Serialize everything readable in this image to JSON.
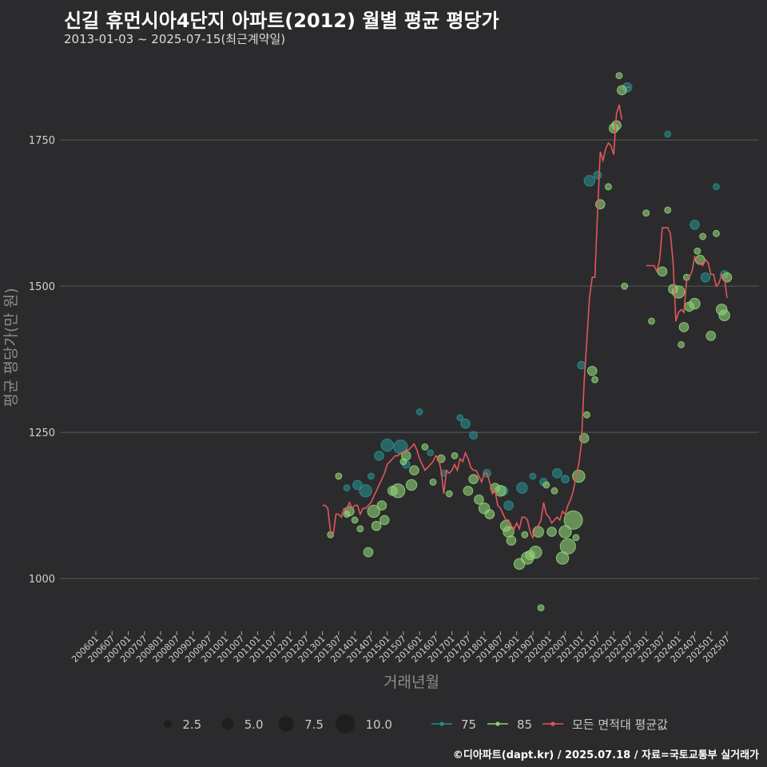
{
  "title": "신길 휴먼시아4단지 아파트(2012) 월별 평균 평당가",
  "subtitle": "2013-01-03 ~ 2025-07-15(최근계약일)",
  "caption": "©디아파트(dapt.kr) / 2025.07.18 / 자료=국토교통부 실거래가",
  "colors": {
    "background": "#2b2b2d",
    "grid": "#5a5a5a",
    "series_75": "#2a8c8c",
    "series_85": "#8fd175",
    "avg_line": "#e0575b"
  },
  "chart_data": {
    "type": "scatter",
    "xlabel": "거래년월",
    "ylabel": "평균 평당가(만 원)",
    "ylim": [
      910,
      1880
    ],
    "y_ticks": [
      1000,
      1250,
      1500,
      1750
    ],
    "x_ticks": [
      "200601",
      "200607",
      "200701",
      "200707",
      "200801",
      "200807",
      "200901",
      "200907",
      "201001",
      "201007",
      "201101",
      "201107",
      "201201",
      "201207",
      "201301",
      "201307",
      "201401",
      "201407",
      "201501",
      "201507",
      "201601",
      "201607",
      "201701",
      "201707",
      "201801",
      "201807",
      "201901",
      "201907",
      "202001",
      "202007",
      "202101",
      "202107",
      "202201",
      "202207",
      "202301",
      "202307",
      "202401",
      "202407",
      "202501",
      "202507"
    ],
    "x_range": [
      "2006-01",
      "2025-07"
    ],
    "grid": true,
    "legend_position": "bottom",
    "size_legend": [
      2.5,
      5.0,
      7.5,
      10.0
    ],
    "series": [
      {
        "name": "75",
        "points": [
          [
            "2013-10",
            1155,
            2
          ],
          [
            "2014-02",
            1160,
            4
          ],
          [
            "2014-05",
            1150,
            6
          ],
          [
            "2014-07",
            1175,
            2
          ],
          [
            "2014-10",
            1210,
            4
          ],
          [
            "2015-01",
            1228,
            6
          ],
          [
            "2015-06",
            1225,
            7
          ],
          [
            "2015-08",
            1195,
            3
          ],
          [
            "2016-01",
            1285,
            2
          ],
          [
            "2016-05",
            1215,
            2
          ],
          [
            "2016-10",
            1180,
            2
          ],
          [
            "2017-06",
            1265,
            4
          ],
          [
            "2017-04",
            1275,
            2
          ],
          [
            "2017-09",
            1245,
            3
          ],
          [
            "2018-02",
            1180,
            3
          ],
          [
            "2018-08",
            1150,
            4
          ],
          [
            "2018-10",
            1125,
            4
          ],
          [
            "2019-03",
            1155,
            5
          ],
          [
            "2019-07",
            1175,
            2
          ],
          [
            "2019-11",
            1165,
            3
          ],
          [
            "2020-04",
            1180,
            4
          ],
          [
            "2020-07",
            1170,
            3
          ],
          [
            "2021-01",
            1365,
            3
          ],
          [
            "2021-04",
            1680,
            5
          ],
          [
            "2021-07",
            1690,
            3
          ],
          [
            "2022-06",
            1840,
            4
          ],
          [
            "2023-09",
            1760,
            2
          ],
          [
            "2024-07",
            1605,
            4
          ],
          [
            "2024-11",
            1515,
            4
          ],
          [
            "2025-03",
            1670,
            2
          ],
          [
            "2025-06",
            1520,
            3
          ]
        ]
      },
      {
        "name": "85",
        "points": [
          [
            "2013-04",
            1075,
            2
          ],
          [
            "2013-07",
            1175,
            2
          ],
          [
            "2013-10",
            1110,
            2
          ],
          [
            "2013-11",
            1115,
            4
          ],
          [
            "2014-01",
            1100,
            2
          ],
          [
            "2014-03",
            1085,
            2
          ],
          [
            "2014-06",
            1045,
            4
          ],
          [
            "2014-08",
            1115,
            6
          ],
          [
            "2014-09",
            1090,
            4
          ],
          [
            "2014-11",
            1125,
            4
          ],
          [
            "2014-12",
            1100,
            4
          ],
          [
            "2015-03",
            1150,
            4
          ],
          [
            "2015-05",
            1150,
            7
          ],
          [
            "2015-07",
            1200,
            2
          ],
          [
            "2015-08",
            1210,
            4
          ],
          [
            "2015-10",
            1160,
            5
          ],
          [
            "2015-11",
            1185,
            4
          ],
          [
            "2016-03",
            1225,
            2
          ],
          [
            "2016-06",
            1165,
            2
          ],
          [
            "2016-09",
            1205,
            3
          ],
          [
            "2016-12",
            1145,
            2
          ],
          [
            "2017-02",
            1210,
            2
          ],
          [
            "2017-07",
            1150,
            4
          ],
          [
            "2017-09",
            1170,
            4
          ],
          [
            "2017-11",
            1135,
            4
          ],
          [
            "2018-01",
            1120,
            5
          ],
          [
            "2018-03",
            1110,
            4
          ],
          [
            "2018-05",
            1155,
            4
          ],
          [
            "2018-07",
            1150,
            5
          ],
          [
            "2018-09",
            1090,
            5
          ],
          [
            "2018-10",
            1080,
            5
          ],
          [
            "2018-11",
            1065,
            4
          ],
          [
            "2019-02",
            1025,
            5
          ],
          [
            "2019-04",
            1075,
            2
          ],
          [
            "2019-05",
            1035,
            6
          ],
          [
            "2019-06",
            1040,
            4
          ],
          [
            "2019-08",
            1045,
            6
          ],
          [
            "2019-09",
            1080,
            5
          ],
          [
            "2019-10",
            950,
            2
          ],
          [
            "2019-12",
            1160,
            2
          ],
          [
            "2020-02",
            1080,
            4
          ],
          [
            "2020-03",
            1150,
            2
          ],
          [
            "2020-06",
            1035,
            6
          ],
          [
            "2020-07",
            1080,
            6
          ],
          [
            "2020-08",
            1055,
            8
          ],
          [
            "2020-10",
            1100,
            10
          ],
          [
            "2020-11",
            1070,
            2
          ],
          [
            "2020-12",
            1175,
            6
          ],
          [
            "2021-02",
            1240,
            4
          ],
          [
            "2021-03",
            1280,
            2
          ],
          [
            "2021-05",
            1355,
            4
          ],
          [
            "2021-06",
            1340,
            2
          ],
          [
            "2021-08",
            1640,
            4
          ],
          [
            "2021-11",
            1670,
            2
          ],
          [
            "2022-01",
            1770,
            4
          ],
          [
            "2022-02",
            1775,
            4
          ],
          [
            "2022-03",
            1860,
            2
          ],
          [
            "2022-04",
            1835,
            4
          ],
          [
            "2022-05",
            1500,
            2
          ],
          [
            "2023-01",
            1625,
            2
          ],
          [
            "2023-03",
            1440,
            2
          ],
          [
            "2023-07",
            1525,
            4
          ],
          [
            "2023-09",
            1630,
            2
          ],
          [
            "2023-11",
            1495,
            4
          ],
          [
            "2024-01",
            1490,
            6
          ],
          [
            "2024-02",
            1400,
            2
          ],
          [
            "2024-03",
            1430,
            4
          ],
          [
            "2024-04",
            1515,
            2
          ],
          [
            "2024-05",
            1465,
            4
          ],
          [
            "2024-07",
            1470,
            5
          ],
          [
            "2024-08",
            1560,
            2
          ],
          [
            "2024-09",
            1545,
            4
          ],
          [
            "2024-10",
            1585,
            2
          ],
          [
            "2025-01",
            1415,
            4
          ],
          [
            "2025-03",
            1590,
            2
          ],
          [
            "2025-05",
            1460,
            5
          ],
          [
            "2025-06",
            1450,
            5
          ],
          [
            "2025-07",
            1515,
            4
          ]
        ]
      }
    ],
    "avg_line": {
      "name": "모든 면적대 평균값",
      "segments": [
        [
          [
            "2013-01",
            1125
          ],
          [
            "2013-02",
            1125
          ],
          [
            "2013-03",
            1120
          ],
          [
            "2013-04",
            1080
          ],
          [
            "2013-05",
            1075
          ],
          [
            "2013-06",
            1110
          ],
          [
            "2013-07",
            1110
          ],
          [
            "2013-08",
            1105
          ],
          [
            "2013-09",
            1120
          ],
          [
            "2013-10",
            1120
          ],
          [
            "2013-11",
            1130
          ],
          [
            "2013-12",
            1120
          ],
          [
            "2014-01",
            1125
          ],
          [
            "2014-02",
            1125
          ],
          [
            "2014-03",
            1110
          ],
          [
            "2014-04",
            1120
          ],
          [
            "2014-05",
            1120
          ],
          [
            "2014-06",
            1125
          ],
          [
            "2014-07",
            1130
          ],
          [
            "2014-08",
            1140
          ],
          [
            "2014-09",
            1150
          ],
          [
            "2014-10",
            1160
          ],
          [
            "2014-11",
            1170
          ],
          [
            "2014-12",
            1180
          ],
          [
            "2015-01",
            1195
          ],
          [
            "2015-02",
            1200
          ],
          [
            "2015-03",
            1205
          ],
          [
            "2015-04",
            1210
          ],
          [
            "2015-05",
            1210
          ],
          [
            "2015-06",
            1215
          ],
          [
            "2015-07",
            1215
          ],
          [
            "2015-08",
            1220
          ],
          [
            "2015-09",
            1220
          ],
          [
            "2015-10",
            1225
          ],
          [
            "2015-11",
            1230
          ],
          [
            "2015-12",
            1220
          ],
          [
            "2016-01",
            1205
          ],
          [
            "2016-02",
            1195
          ],
          [
            "2016-03",
            1185
          ],
          [
            "2016-04",
            1190
          ],
          [
            "2016-05",
            1195
          ],
          [
            "2016-06",
            1200
          ],
          [
            "2016-07",
            1210
          ],
          [
            "2016-08",
            1205
          ],
          [
            "2016-09",
            1185
          ],
          [
            "2016-10",
            1145
          ],
          [
            "2016-11",
            1185
          ],
          [
            "2016-12",
            1180
          ],
          [
            "2017-01",
            1185
          ],
          [
            "2017-02",
            1195
          ],
          [
            "2017-03",
            1185
          ],
          [
            "2017-04",
            1205
          ],
          [
            "2017-05",
            1200
          ],
          [
            "2017-06",
            1215
          ],
          [
            "2017-07",
            1205
          ],
          [
            "2017-08",
            1190
          ],
          [
            "2017-09",
            1185
          ],
          [
            "2017-10",
            1185
          ],
          [
            "2017-11",
            1175
          ],
          [
            "2017-12",
            1165
          ],
          [
            "2018-01",
            1180
          ],
          [
            "2018-02",
            1180
          ],
          [
            "2018-03",
            1165
          ],
          [
            "2018-04",
            1145
          ],
          [
            "2018-05",
            1150
          ],
          [
            "2018-06",
            1125
          ],
          [
            "2018-07",
            1120
          ],
          [
            "2018-08",
            1110
          ],
          [
            "2018-09",
            1100
          ],
          [
            "2018-10",
            1100
          ],
          [
            "2018-11",
            1090
          ],
          [
            "2018-12",
            1085
          ],
          [
            "2019-01",
            1095
          ],
          [
            "2019-02",
            1085
          ],
          [
            "2019-03",
            1105
          ],
          [
            "2019-04",
            1105
          ],
          [
            "2019-05",
            1100
          ],
          [
            "2019-06",
            1080
          ],
          [
            "2019-07",
            1070
          ],
          [
            "2019-08",
            1085
          ],
          [
            "2019-09",
            1090
          ],
          [
            "2019-10",
            1100
          ],
          [
            "2019-11",
            1130
          ],
          [
            "2019-12",
            1110
          ],
          [
            "2020-01",
            1105
          ],
          [
            "2020-02",
            1095
          ],
          [
            "2020-03",
            1100
          ],
          [
            "2020-04",
            1105
          ],
          [
            "2020-05",
            1100
          ],
          [
            "2020-06",
            1115
          ],
          [
            "2020-07",
            1110
          ],
          [
            "2020-08",
            1125
          ],
          [
            "2020-09",
            1135
          ],
          [
            "2020-10",
            1150
          ],
          [
            "2020-11",
            1175
          ],
          [
            "2020-12",
            1195
          ],
          [
            "2021-01",
            1230
          ],
          [
            "2021-02",
            1335
          ],
          [
            "2021-03",
            1405
          ],
          [
            "2021-04",
            1480
          ],
          [
            "2021-05",
            1515
          ],
          [
            "2021-06",
            1515
          ],
          [
            "2021-07",
            1625
          ],
          [
            "2021-08",
            1730
          ],
          [
            "2021-09",
            1715
          ],
          [
            "2021-10",
            1735
          ],
          [
            "2021-11",
            1745
          ],
          [
            "2021-12",
            1740
          ],
          [
            "2022-01",
            1725
          ],
          [
            "2022-02",
            1795
          ],
          [
            "2022-03",
            1810
          ],
          [
            "2022-04",
            1785
          ]
        ],
        [
          [
            "2022-06",
            1840
          ],
          [
            "2022-07",
            1840
          ]
        ],
        [
          [
            "2023-01",
            1535
          ],
          [
            "2023-02",
            1535
          ],
          [
            "2023-03",
            1535
          ],
          [
            "2023-04",
            1535
          ],
          [
            "2023-05",
            1525
          ],
          [
            "2023-06",
            1545
          ],
          [
            "2023-07",
            1600
          ],
          [
            "2023-08",
            1600
          ],
          [
            "2023-09",
            1600
          ],
          [
            "2023-10",
            1590
          ],
          [
            "2023-11",
            1540
          ],
          [
            "2023-12",
            1440
          ],
          [
            "2024-01",
            1455
          ],
          [
            "2024-02",
            1460
          ],
          [
            "2024-03",
            1455
          ],
          [
            "2024-04",
            1510
          ],
          [
            "2024-05",
            1515
          ],
          [
            "2024-06",
            1525
          ],
          [
            "2024-07",
            1550
          ],
          [
            "2024-08",
            1545
          ],
          [
            "2024-09",
            1540
          ],
          [
            "2024-10",
            1535
          ],
          [
            "2024-11",
            1545
          ],
          [
            "2024-12",
            1540
          ],
          [
            "2025-01",
            1520
          ],
          [
            "2025-02",
            1520
          ],
          [
            "2025-03",
            1500
          ],
          [
            "2025-04",
            1505
          ],
          [
            "2025-05",
            1520
          ],
          [
            "2025-06",
            1515
          ],
          [
            "2025-07",
            1480
          ]
        ]
      ]
    }
  }
}
